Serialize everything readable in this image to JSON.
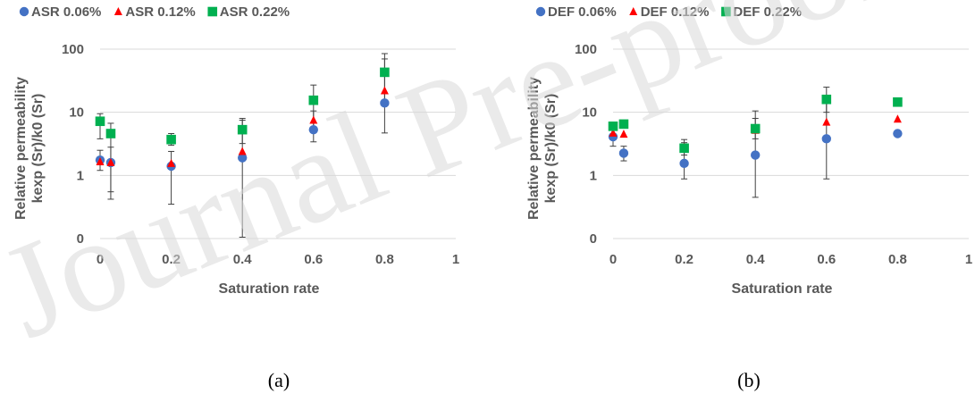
{
  "watermark": "Journal Pre-proof",
  "chart_data": [
    {
      "id": "a",
      "type": "scatter",
      "caption": "(a)",
      "xlabel": "Saturation rate",
      "ylabel_line1": "Relative permeability",
      "ylabel_line2": "kexp (Sr)/k0 (Sr)",
      "xlim": [
        0,
        1
      ],
      "ylim": [
        0.1,
        100
      ],
      "yscale": "log",
      "x_ticks": [
        0,
        0.2,
        0.4,
        0.6,
        0.8,
        1
      ],
      "x_tick_labels": [
        "0",
        "0.2",
        "0.4",
        "0.6",
        "0.8",
        "1"
      ],
      "y_ticks": [
        0.1,
        1,
        10,
        100
      ],
      "y_tick_labels": [
        "0",
        "1",
        "10",
        "100"
      ],
      "grid": "horizontal",
      "legend_position": "top",
      "series": [
        {
          "name": "ASR 0.06%",
          "marker": "circle",
          "color": "#4472c4",
          "points": [
            {
              "x": 0,
              "y": 1.75,
              "lo": 1.2,
              "hi": 2.5
            },
            {
              "x": 0.03,
              "y": 1.6,
              "lo": 0.55,
              "hi": 2.8
            },
            {
              "x": 0.2,
              "y": 1.4,
              "lo": 0.35,
              "hi": 2.4
            },
            {
              "x": 0.4,
              "y": 1.9,
              "lo": 0.105,
              "hi": 7.5
            },
            {
              "x": 0.6,
              "y": 5.3,
              "lo": 3.4,
              "hi": 10.5
            },
            {
              "x": 0.8,
              "y": 14,
              "lo": 4.7,
              "hi": 70
            }
          ]
        },
        {
          "name": "ASR 0.12%",
          "marker": "triangle",
          "color": "#ff0000",
          "points": [
            {
              "x": 0,
              "y": 1.65
            },
            {
              "x": 0.03,
              "y": 1.6
            },
            {
              "x": 0.2,
              "y": 1.55
            },
            {
              "x": 0.4,
              "y": 2.4
            },
            {
              "x": 0.6,
              "y": 7.5
            },
            {
              "x": 0.8,
              "y": 22
            }
          ]
        },
        {
          "name": "ASR 0.22%",
          "marker": "square",
          "color": "#00b050",
          "points": [
            {
              "x": 0,
              "y": 7.2,
              "lo": 3.8,
              "hi": 9.5
            },
            {
              "x": 0.03,
              "y": 4.6,
              "lo": 0.42,
              "hi": 6.7
            },
            {
              "x": 0.2,
              "y": 3.7,
              "lo": 3.0,
              "hi": 4.6
            },
            {
              "x": 0.4,
              "y": 5.3,
              "lo": 3.2,
              "hi": 8.0
            },
            {
              "x": 0.6,
              "y": 15.5,
              "lo": 5.3,
              "hi": 27
            },
            {
              "x": 0.8,
              "y": 43,
              "lo": 14,
              "hi": 85
            }
          ]
        }
      ]
    },
    {
      "id": "b",
      "type": "scatter",
      "caption": "(b)",
      "xlabel": "Saturation rate",
      "ylabel_line1": "Relative permeability",
      "ylabel_line2": "kexp (Sr)/k0 (Sr)",
      "xlim": [
        0,
        1
      ],
      "ylim": [
        0.1,
        100
      ],
      "yscale": "log",
      "x_ticks": [
        0,
        0.2,
        0.4,
        0.6,
        0.8,
        1
      ],
      "x_tick_labels": [
        "0",
        "0.2",
        "0.4",
        "0.6",
        "0.8",
        "1"
      ],
      "y_ticks": [
        0.1,
        1,
        10,
        100
      ],
      "y_tick_labels": [
        "0",
        "1",
        "10",
        "100"
      ],
      "grid": "horizontal",
      "legend_position": "top",
      "series": [
        {
          "name": "DEF 0.06%",
          "marker": "circle",
          "color": "#4472c4",
          "points": [
            {
              "x": 0,
              "y": 4.1,
              "lo": 2.9,
              "hi": 5.5
            },
            {
              "x": 0.03,
              "y": 2.25,
              "lo": 1.7,
              "hi": 2.9
            },
            {
              "x": 0.2,
              "y": 1.55,
              "lo": 0.88,
              "hi": 3.3
            },
            {
              "x": 0.4,
              "y": 2.1,
              "lo": 0.45,
              "hi": 10.5
            },
            {
              "x": 0.6,
              "y": 3.8,
              "lo": 0.88,
              "hi": 16
            },
            {
              "x": 0.8,
              "y": 4.6
            }
          ]
        },
        {
          "name": "DEF 0.12%",
          "marker": "triangle",
          "color": "#ff0000",
          "points": [
            {
              "x": 0,
              "y": 4.7
            },
            {
              "x": 0.03,
              "y": 4.5
            },
            {
              "x": 0.2,
              "y": 2.8
            },
            {
              "x": 0.4,
              "y": 5.2
            },
            {
              "x": 0.6,
              "y": 7.0
            },
            {
              "x": 0.8,
              "y": 7.8
            }
          ]
        },
        {
          "name": "DEF 0.22%",
          "marker": "square",
          "color": "#00b050",
          "points": [
            {
              "x": 0,
              "y": 6.0
            },
            {
              "x": 0.03,
              "y": 6.5
            },
            {
              "x": 0.2,
              "y": 2.7,
              "lo": 2.1,
              "hi": 3.7
            },
            {
              "x": 0.4,
              "y": 5.5,
              "lo": 3.8,
              "hi": 8.0
            },
            {
              "x": 0.6,
              "y": 16,
              "lo": 10,
              "hi": 25
            },
            {
              "x": 0.8,
              "y": 14.5
            }
          ]
        }
      ]
    }
  ]
}
